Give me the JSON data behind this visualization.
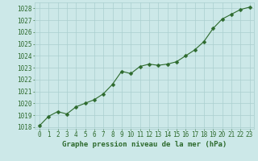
{
  "x": [
    0,
    1,
    2,
    3,
    4,
    5,
    6,
    7,
    8,
    9,
    10,
    11,
    12,
    13,
    14,
    15,
    16,
    17,
    18,
    19,
    20,
    21,
    22,
    23
  ],
  "y": [
    1018.1,
    1018.9,
    1019.3,
    1019.1,
    1019.7,
    1020.0,
    1020.3,
    1020.8,
    1021.6,
    1022.7,
    1022.5,
    1023.1,
    1023.3,
    1023.2,
    1023.3,
    1023.5,
    1024.0,
    1024.5,
    1025.2,
    1026.3,
    1027.1,
    1027.5,
    1027.9,
    1028.1
  ],
  "line_color": "#2d6a2d",
  "marker_color": "#2d6a2d",
  "bg_color": "#cce8e8",
  "grid_color": "#aacfcf",
  "text_color": "#2d6a2d",
  "xlabel": "Graphe pression niveau de la mer (hPa)",
  "ylim_min": 1018,
  "ylim_max": 1028.5,
  "yticks": [
    1018,
    1019,
    1020,
    1021,
    1022,
    1023,
    1024,
    1025,
    1026,
    1027,
    1028
  ],
  "xticks": [
    0,
    1,
    2,
    3,
    4,
    5,
    6,
    7,
    8,
    9,
    10,
    11,
    12,
    13,
    14,
    15,
    16,
    17,
    18,
    19,
    20,
    21,
    22,
    23
  ],
  "tick_fontsize": 5.5,
  "xlabel_fontsize": 6.5,
  "marker_size": 2.5,
  "line_width": 0.8
}
